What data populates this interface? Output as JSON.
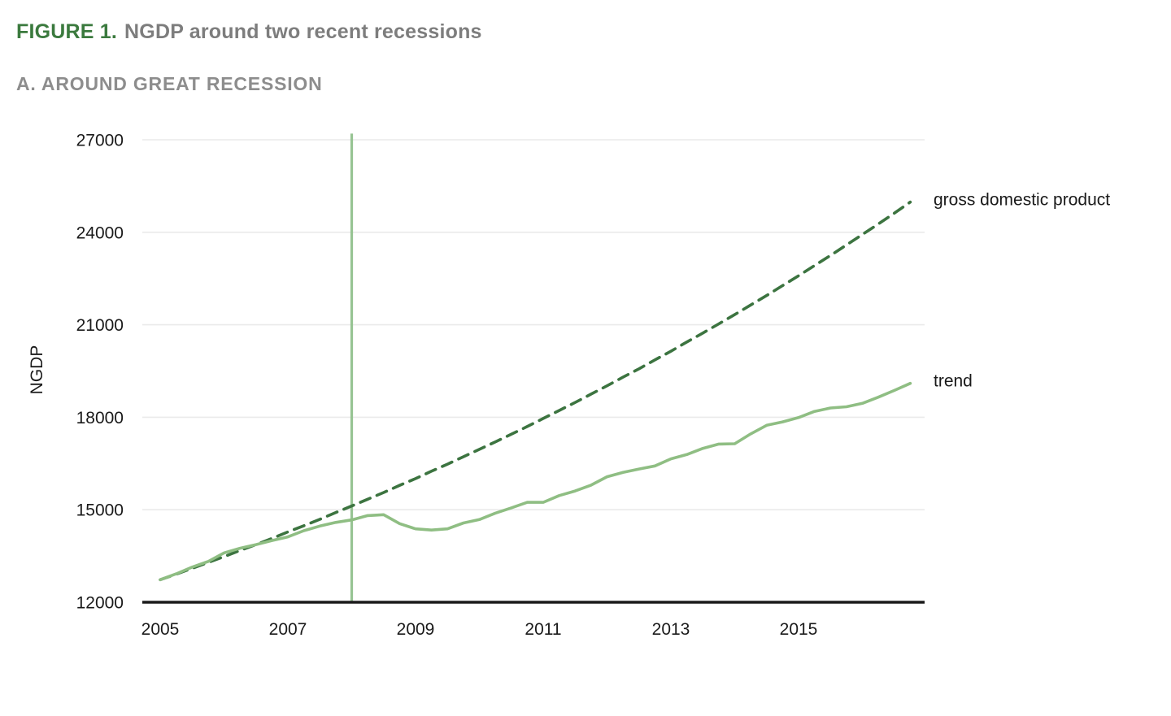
{
  "figure": {
    "label": "FIGURE 1.",
    "title": "NGDP around two recent recessions",
    "panel_label": "A. AROUND GREAT RECESSION"
  },
  "colors": {
    "figure_label_green": "#3b7a3e",
    "title_gray": "#7d7d7d",
    "panel_gray": "#8d8d8d",
    "gdp_line": "#3c7440",
    "trend_line": "#8fbe83",
    "recession_marker": "#97c493",
    "gridline": "#eaeaea",
    "axis": "#1a1a1a",
    "tick_text": "#1a1a1a",
    "series_label_text": "#111111"
  },
  "chart_data": {
    "type": "line",
    "title": "",
    "xlabel": "",
    "ylabel": "NGDP",
    "grid": "horizontal",
    "legend_position": "labels-at-line-ends-right",
    "x_ticks": [
      2005,
      2007,
      2009,
      2011,
      2013,
      2015
    ],
    "y_ticks": [
      12000,
      15000,
      18000,
      21000,
      24000,
      27000
    ],
    "xlim": [
      2004.72,
      2016.95
    ],
    "ylim": [
      12000,
      27200
    ],
    "recession_marker_x": 2008,
    "x": [
      2005.0,
      2005.25,
      2005.5,
      2005.75,
      2006.0,
      2006.25,
      2006.5,
      2006.75,
      2007.0,
      2007.25,
      2007.5,
      2007.75,
      2008.0,
      2008.25,
      2008.5,
      2008.75,
      2009.0,
      2009.25,
      2009.5,
      2009.75,
      2010.0,
      2010.25,
      2010.5,
      2010.75,
      2011.0,
      2011.25,
      2011.5,
      2011.75,
      2012.0,
      2012.25,
      2012.5,
      2012.75,
      2013.0,
      2013.25,
      2013.5,
      2013.75,
      2014.0,
      2014.25,
      2014.5,
      2014.75,
      2015.0,
      2015.25,
      2015.5,
      2015.75,
      2016.0,
      2016.25,
      2016.5,
      2016.75
    ],
    "series": [
      {
        "name": "gross domestic product",
        "style": "dashed",
        "color": "#3c7440",
        "values": [
          12730,
          12910,
          13100,
          13290,
          13480,
          13680,
          13870,
          14070,
          14280,
          14480,
          14690,
          14910,
          15120,
          15340,
          15560,
          15790,
          16010,
          16250,
          16480,
          16720,
          16960,
          17200,
          17450,
          17700,
          17960,
          18220,
          18480,
          18750,
          19020,
          19300,
          19570,
          19860,
          20140,
          20440,
          20730,
          21030,
          21330,
          21640,
          21950,
          22270,
          22590,
          22920,
          23250,
          23590,
          23930,
          24270,
          24620,
          24980
        ]
      },
      {
        "name": "trend",
        "style": "solid",
        "color": "#8fbe83",
        "values": [
          12730,
          12920,
          13140,
          13320,
          13600,
          13750,
          13870,
          14000,
          14120,
          14320,
          14470,
          14590,
          14670,
          14810,
          14840,
          14550,
          14380,
          14340,
          14380,
          14570,
          14680,
          14890,
          15060,
          15240,
          15240,
          15460,
          15610,
          15800,
          16070,
          16210,
          16320,
          16420,
          16650,
          16790,
          16990,
          17130,
          17140,
          17460,
          17740,
          17850,
          17990,
          18190,
          18300,
          18340,
          18450,
          18650,
          18870,
          19100
        ]
      }
    ]
  }
}
